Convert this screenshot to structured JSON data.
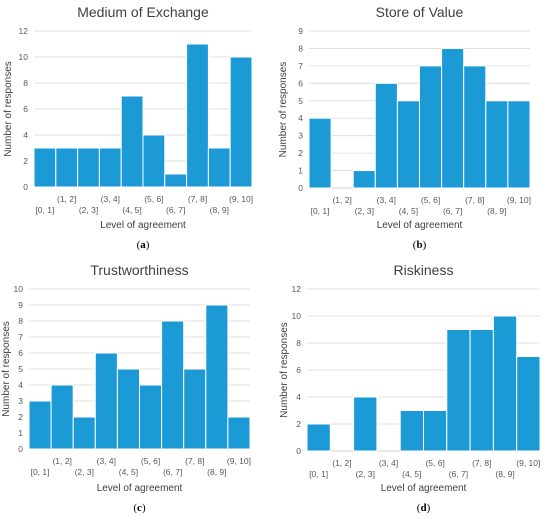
{
  "colors": {
    "bar": "#1b9ad6",
    "bar_edge": "#ffffff",
    "grid": "#d9d9d9",
    "axis": "#bfbfbf"
  },
  "chart_data": [
    {
      "type": "bar",
      "title": "Medium of Exchange",
      "caption": "(a)",
      "xlabel": "Level of agreement",
      "ylabel": "Number of responses",
      "categories": [
        "[0, 1]",
        "(1, 2]",
        "(2, 3]",
        "(3, 4]",
        "(4, 5]",
        "(5, 6]",
        "(6, 7]",
        "(7, 8]",
        "(8, 9]",
        "(9, 10]"
      ],
      "values": [
        3,
        3,
        3,
        3,
        7,
        4,
        1,
        11,
        3,
        10
      ],
      "ylim": [
        0,
        12
      ],
      "yticks": [
        0,
        2,
        4,
        6,
        8,
        10,
        12
      ],
      "grid": true
    },
    {
      "type": "bar",
      "title": "Store of Value",
      "caption": "(b)",
      "xlabel": "Level of agreement",
      "ylabel": "Number of responses",
      "categories": [
        "[0, 1]",
        "(1, 2]",
        "(2, 3]",
        "(3, 4]",
        "(4, 5]",
        "(5, 6]",
        "(6, 7]",
        "(7, 8]",
        "(8, 9]",
        "(9, 10]"
      ],
      "values": [
        4,
        0,
        1,
        6,
        5,
        7,
        8,
        7,
        5,
        5
      ],
      "ylim": [
        0,
        9
      ],
      "yticks": [
        0,
        1,
        2,
        3,
        4,
        5,
        6,
        7,
        8,
        9
      ],
      "grid": true
    },
    {
      "type": "bar",
      "title": "Trustworthiness",
      "caption": "(c)",
      "xlabel": "Level of agreement",
      "ylabel": "Number of responses",
      "categories": [
        "[0, 1]",
        "(1, 2]",
        "(2, 3]",
        "(3, 4]",
        "(4, 5]",
        "(5, 6]",
        "(6, 7]",
        "(7, 8]",
        "(8, 9]",
        "(9, 10]"
      ],
      "values": [
        3,
        4,
        2,
        6,
        5,
        4,
        8,
        5,
        9,
        2
      ],
      "ylim": [
        0,
        10
      ],
      "yticks": [
        0,
        1,
        2,
        3,
        4,
        5,
        6,
        7,
        8,
        9,
        10
      ],
      "grid": true
    },
    {
      "type": "bar",
      "title": "Riskiness",
      "caption": "(d)",
      "xlabel": "Level of agreement",
      "ylabel": "Number of responses",
      "categories": [
        "[0, 1]",
        "(1, 2]",
        "(2, 3]",
        "(3, 4]",
        "(4, 5]",
        "(5, 6]",
        "(6, 7]",
        "(7, 8]",
        "(8, 9]",
        "(9, 10]"
      ],
      "values": [
        2,
        0,
        4,
        0,
        3,
        3,
        9,
        9,
        10,
        7
      ],
      "ylim": [
        0,
        12
      ],
      "yticks": [
        0,
        2,
        4,
        6,
        8,
        10,
        12
      ],
      "grid": true
    }
  ]
}
